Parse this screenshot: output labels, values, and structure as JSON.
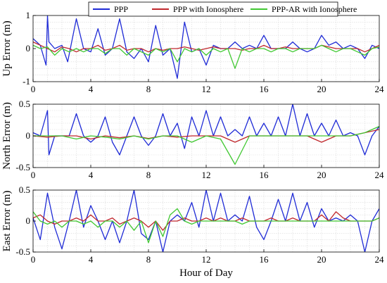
{
  "chart_data": [
    {
      "type": "line",
      "ylabel": "Up Error (m)",
      "xlabel": "",
      "xlim": [
        0,
        24
      ],
      "ylim": [
        -1,
        1
      ],
      "xticks": [
        "0",
        "4",
        "8",
        "12",
        "16",
        "20",
        "24"
      ],
      "yticks": [
        "-1",
        "0",
        "1"
      ],
      "grid": true,
      "legend": "top-center",
      "series": [
        {
          "name": "PPP",
          "color": "#1f2bd6",
          "x": [
            0,
            0.5,
            0.9,
            1,
            1.1,
            1.5,
            2,
            2.4,
            3,
            3.5,
            4,
            4.5,
            5,
            5.5,
            6,
            6.5,
            7,
            7.5,
            8,
            8.5,
            9,
            9.5,
            10,
            10.5,
            11,
            11.5,
            12,
            12.5,
            13,
            13.5,
            14,
            14.5,
            15,
            15.5,
            16,
            16.5,
            17,
            17.5,
            18,
            18.5,
            19,
            19.5,
            20,
            20.5,
            21,
            21.5,
            22,
            22.5,
            23,
            23.5,
            24
          ],
          "values": [
            0.3,
            0.1,
            -0.5,
            1.0,
            0.2,
            0.0,
            0.1,
            -0.4,
            0.9,
            0.0,
            -0.1,
            0.6,
            -0.2,
            0.0,
            0.9,
            -0.1,
            -0.3,
            0.0,
            -0.4,
            0.7,
            -0.2,
            0.0,
            -0.9,
            0.8,
            -0.1,
            0.0,
            -0.5,
            0.1,
            0.0,
            0.0,
            0.2,
            0.0,
            0.1,
            0.0,
            0.4,
            0.0,
            0.0,
            0.0,
            0.2,
            0.0,
            -0.1,
            0.0,
            0.4,
            0.1,
            0.2,
            0.0,
            0.1,
            0.0,
            -0.3,
            0.1,
            0.0
          ]
        },
        {
          "name": "PPP with Ionosphere",
          "color": "#c0282d",
          "x": [
            0,
            0.5,
            1,
            1.5,
            2,
            2.5,
            3,
            3.5,
            4,
            4.5,
            5,
            5.5,
            6,
            6.5,
            7,
            7.5,
            8,
            8.5,
            9,
            9.5,
            10,
            10.5,
            11,
            11.5,
            12,
            12.5,
            13,
            13.5,
            14,
            14.5,
            15,
            15.5,
            16,
            16.5,
            17,
            17.5,
            18,
            18.5,
            19,
            19.5,
            20,
            20.5,
            21,
            21.5,
            22,
            22.5,
            23,
            23.5,
            24
          ],
          "values": [
            0.2,
            0.1,
            0.0,
            -0.1,
            0.05,
            0.0,
            -0.1,
            0.0,
            0.0,
            0.1,
            -0.05,
            0.0,
            0.1,
            -0.05,
            0.0,
            0.0,
            -0.1,
            0.0,
            -0.05,
            0.0,
            0.0,
            0.05,
            0.0,
            -0.05,
            0.0,
            0.05,
            0.0,
            0.0,
            0.0,
            -0.05,
            0.0,
            0.0,
            0.1,
            0.0,
            0.0,
            0.05,
            0.0,
            0.0,
            0.0,
            0.0,
            0.1,
            0.05,
            0.0,
            0.0,
            0.0,
            0.0,
            -0.1,
            0.0,
            0.1
          ]
        },
        {
          "name": "PPP-AR with Ionosphere",
          "color": "#41c832",
          "x": [
            0,
            0.5,
            1,
            1.5,
            2,
            2.5,
            3,
            3.5,
            4,
            4.5,
            5,
            5.5,
            6,
            6.5,
            7,
            7.5,
            8,
            8.5,
            9,
            9.5,
            10,
            10.5,
            11,
            11.5,
            12,
            12.5,
            13,
            13.5,
            14,
            14.5,
            15,
            15.5,
            16,
            16.5,
            17,
            17.5,
            18,
            18.5,
            19,
            19.5,
            20,
            20.5,
            21,
            21.5,
            22,
            22.5,
            23,
            23.5,
            24
          ],
          "values": [
            0.1,
            0.0,
            0.05,
            -0.2,
            0.0,
            -0.1,
            0.0,
            -0.1,
            0.0,
            0.0,
            -0.15,
            0.0,
            0.0,
            -0.2,
            0.0,
            -0.1,
            -0.2,
            0.0,
            -0.1,
            0.0,
            -0.4,
            0.0,
            -0.1,
            0.0,
            -0.2,
            0.0,
            -0.1,
            0.0,
            -0.6,
            0.0,
            -0.1,
            0.0,
            0.0,
            -0.1,
            0.0,
            0.0,
            -0.1,
            0.0,
            0.0,
            0.0,
            0.1,
            0.0,
            -0.1,
            0.0,
            0.0,
            -0.1,
            -0.2,
            0.0,
            0.05
          ]
        }
      ]
    },
    {
      "type": "line",
      "ylabel": "North Error (m)",
      "xlabel": "",
      "xlim": [
        0,
        24
      ],
      "ylim": [
        -0.5,
        0.5
      ],
      "xticks": [
        "0",
        "4",
        "8",
        "12",
        "16",
        "20",
        "24"
      ],
      "yticks": [
        "-0.5",
        "0",
        "0.5"
      ],
      "grid": true,
      "series": [
        {
          "name": "PPP",
          "color": "#1f2bd6",
          "x": [
            0,
            0.5,
            1,
            1.1,
            1.5,
            2,
            2.5,
            3,
            3.5,
            4,
            4.5,
            5,
            5.5,
            6,
            6.5,
            7,
            7.5,
            8,
            8.5,
            9,
            9.5,
            10,
            10.5,
            11,
            11.5,
            12,
            12.5,
            13,
            13.5,
            14,
            14.5,
            15,
            15.5,
            16,
            16.5,
            17,
            17.5,
            18,
            18.5,
            19,
            19.5,
            20,
            20.5,
            21,
            21.5,
            22,
            22.5,
            23,
            23.5,
            24
          ],
          "values": [
            0.05,
            0.0,
            0.4,
            -0.3,
            0.0,
            0.0,
            0.0,
            0.35,
            0.0,
            -0.1,
            0.0,
            0.3,
            -0.1,
            -0.3,
            0.0,
            0.3,
            0.0,
            -0.15,
            0.0,
            0.35,
            0.0,
            0.2,
            -0.2,
            0.3,
            0.0,
            0.4,
            0.0,
            0.3,
            0.0,
            0.1,
            0.0,
            0.3,
            0.0,
            0.2,
            0.0,
            0.3,
            0.0,
            0.5,
            0.0,
            0.35,
            0.0,
            0.2,
            0.0,
            0.25,
            0.0,
            0.05,
            0.0,
            -0.3,
            0.0,
            0.15
          ]
        },
        {
          "name": "PPP with Ionosphere",
          "color": "#c0282d",
          "x": [
            0,
            1,
            2,
            3,
            4,
            5,
            6,
            7,
            8,
            9,
            10,
            11,
            12,
            13,
            14,
            15,
            16,
            17,
            18,
            19,
            20,
            21,
            22,
            23,
            24
          ],
          "values": [
            0.0,
            -0.02,
            0.0,
            0.0,
            -0.05,
            0.0,
            -0.03,
            0.0,
            -0.04,
            0.0,
            -0.02,
            0.0,
            0.0,
            0.0,
            -0.1,
            0.0,
            0.0,
            0.0,
            0.0,
            0.0,
            -0.1,
            0.0,
            0.0,
            0.05,
            0.1
          ]
        },
        {
          "name": "PPP-AR with Ionosphere",
          "color": "#41c832",
          "x": [
            0,
            1,
            2,
            3,
            4,
            5,
            6,
            7,
            8,
            9,
            10,
            11,
            12,
            13,
            14,
            15,
            16,
            17,
            18,
            19,
            20,
            21,
            22,
            23,
            24
          ],
          "values": [
            0.0,
            0.0,
            0.0,
            -0.05,
            0.0,
            -0.02,
            -0.05,
            0.0,
            -0.05,
            0.0,
            0.0,
            -0.1,
            0.0,
            -0.05,
            -0.45,
            0.0,
            0.0,
            0.0,
            0.0,
            0.0,
            0.0,
            0.0,
            0.0,
            0.05,
            0.15
          ]
        }
      ]
    },
    {
      "type": "line",
      "ylabel": "East Error (m)",
      "xlabel": "Hour of Day",
      "xlim": [
        0,
        24
      ],
      "ylim": [
        -0.5,
        0.5
      ],
      "xticks": [
        "0",
        "4",
        "8",
        "12",
        "16",
        "20",
        "24"
      ],
      "yticks": [
        "-0.5",
        "0",
        "0.5"
      ],
      "grid": true,
      "series": [
        {
          "name": "PPP",
          "color": "#1f2bd6",
          "x": [
            0,
            0.5,
            1,
            1.5,
            2,
            2.5,
            3,
            3.5,
            4,
            4.5,
            5,
            5.5,
            6,
            6.5,
            7,
            7.5,
            8,
            8.5,
            9,
            9.5,
            10,
            10.5,
            11,
            11.5,
            12,
            12.5,
            13,
            13.5,
            14,
            14.5,
            15,
            15.5,
            16,
            16.5,
            17,
            17.5,
            18,
            18.5,
            19,
            19.5,
            20,
            20.5,
            21,
            21.5,
            22,
            22.5,
            23,
            23.5,
            24
          ],
          "values": [
            0.05,
            -0.3,
            0.45,
            -0.1,
            -0.45,
            0.0,
            0.5,
            -0.1,
            0.25,
            0.0,
            -0.3,
            0.0,
            -0.35,
            0.0,
            0.5,
            -0.2,
            -0.3,
            0.0,
            -0.5,
            0.0,
            0.1,
            0.0,
            0.3,
            -0.1,
            0.5,
            0.0,
            0.45,
            0.0,
            0.1,
            0.0,
            0.4,
            -0.1,
            -0.3,
            0.0,
            0.35,
            0.0,
            0.45,
            0.0,
            0.3,
            -0.1,
            0.2,
            0.0,
            0.05,
            0.0,
            0.1,
            0.0,
            -0.5,
            0.0,
            0.2
          ]
        },
        {
          "name": "PPP with Ionosphere",
          "color": "#c0282d",
          "x": [
            0,
            0.5,
            1,
            1.5,
            2,
            2.5,
            3,
            3.5,
            4,
            4.5,
            5,
            5.5,
            6,
            6.5,
            7,
            7.5,
            8,
            8.5,
            9,
            9.5,
            10,
            10.5,
            11,
            11.5,
            12,
            12.5,
            13,
            13.5,
            14,
            14.5,
            15,
            15.5,
            16,
            16.5,
            17,
            17.5,
            18,
            18.5,
            19,
            19.5,
            20,
            20.5,
            21,
            21.5,
            22,
            22.5,
            23,
            23.5,
            24
          ],
          "values": [
            0.05,
            0.1,
            0.0,
            -0.05,
            0.0,
            0.0,
            0.05,
            0.0,
            0.1,
            0.0,
            0.0,
            0.05,
            -0.05,
            0.0,
            0.05,
            0.0,
            -0.1,
            0.0,
            -0.15,
            0.0,
            0.0,
            0.05,
            0.0,
            0.0,
            0.05,
            0.0,
            0.05,
            0.0,
            0.0,
            0.05,
            0.0,
            0.0,
            0.0,
            0.05,
            0.0,
            0.0,
            0.05,
            0.0,
            0.0,
            0.0,
            0.1,
            0.0,
            0.15,
            0.05,
            0.0,
            0.0,
            0.0,
            0.0,
            0.05
          ]
        },
        {
          "name": "PPP-AR with Ionosphere",
          "color": "#41c832",
          "x": [
            0,
            0.5,
            1,
            1.5,
            2,
            2.5,
            3,
            3.5,
            4,
            4.5,
            5,
            5.5,
            6,
            6.5,
            7,
            7.5,
            8,
            8.5,
            9,
            9.5,
            10,
            10.5,
            11,
            11.5,
            12,
            12.5,
            13,
            13.5,
            14,
            14.5,
            15,
            15.5,
            16,
            16.5,
            17,
            17.5,
            18,
            18.5,
            19,
            19.5,
            20,
            20.5,
            21,
            21.5,
            22,
            22.5,
            23,
            23.5,
            24
          ],
          "values": [
            0.15,
            0.0,
            -0.05,
            0.0,
            -0.1,
            0.0,
            0.0,
            -0.05,
            0.0,
            -0.1,
            0.0,
            0.0,
            -0.1,
            0.0,
            -0.15,
            0.0,
            -0.35,
            0.0,
            -0.25,
            0.1,
            0.2,
            0.0,
            -0.05,
            0.0,
            0.0,
            0.0,
            0.0,
            0.0,
            0.0,
            -0.05,
            0.0,
            0.0,
            0.0,
            0.0,
            0.0,
            0.0,
            0.0,
            0.0,
            0.0,
            0.0,
            0.0,
            0.0,
            0.0,
            0.0,
            0.0,
            0.0,
            0.0,
            0.0,
            0.05
          ]
        }
      ]
    }
  ]
}
